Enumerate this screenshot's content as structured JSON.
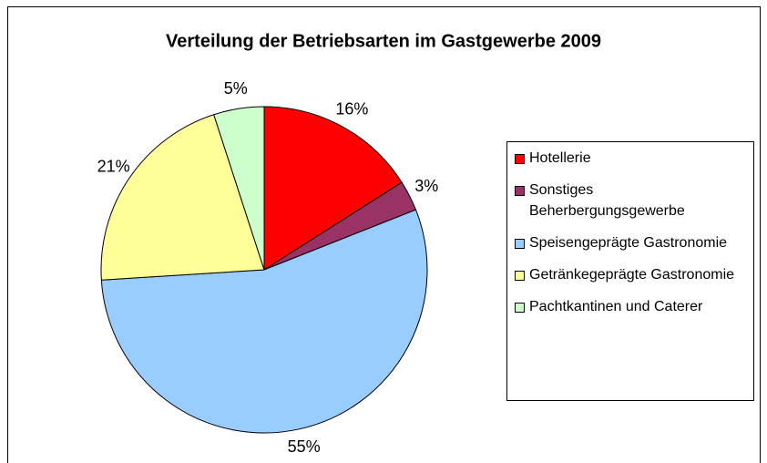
{
  "chart_data": {
    "type": "pie",
    "title": "Verteilung der Betriebsarten im Gastgewerbe 2009",
    "categories": [
      "Hotellerie",
      "Sonstiges Beherbergungsgewerbe",
      "Speisengeprägte Gastronomie",
      "Getränkegeprägte Gastronomie",
      "Pachtkantinen und Caterer"
    ],
    "values": [
      16,
      3,
      55,
      21,
      5
    ],
    "value_labels": [
      "16%",
      "3%",
      "55%",
      "21%",
      "5%"
    ],
    "colors": [
      "#ff0000",
      "#993366",
      "#99ccff",
      "#ffff99",
      "#ccffcc"
    ],
    "legend": "right"
  }
}
